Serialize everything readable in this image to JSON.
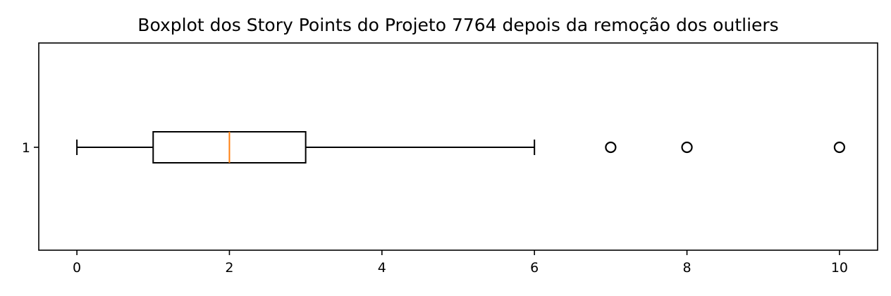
{
  "chart_data": {
    "type": "boxplot",
    "title": "Boxplot dos Story Points do Projeto 7764 depois da remoção dos outliers",
    "orientation": "horizontal",
    "xlim": [
      -0.5,
      10.5
    ],
    "x_ticks": [
      "0",
      "2",
      "4",
      "6",
      "8",
      "10"
    ],
    "y_ticks": [
      "1"
    ],
    "grid": false,
    "series": [
      {
        "category": "1",
        "whisker_low": 0,
        "q1": 1,
        "median": 2,
        "q3": 3,
        "whisker_high": 6,
        "outliers": [
          7,
          8,
          10
        ]
      }
    ],
    "colors": {
      "box": "#000000",
      "median": "#ff7f0e",
      "outlier": "#000000"
    }
  }
}
